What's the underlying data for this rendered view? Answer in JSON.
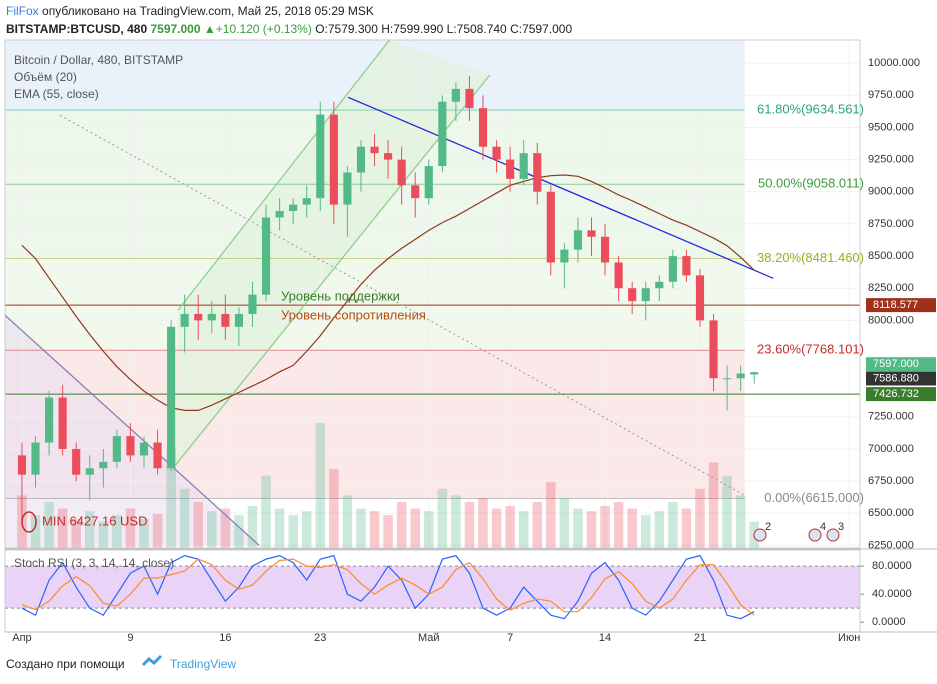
{
  "header": {
    "author": "FilFox",
    "published": "опубликовано на TradingView.com, Май 25, 2018 05:29 MSK",
    "symbol": "BITSTAMP:BTCUSD, 480",
    "last": "7597.000",
    "arrow": "▲",
    "change": "+10.120 (+0.13%)",
    "open": "O:7579.300",
    "high": "H:7599.990",
    "low": "L:7508.740",
    "close": "C:7597.000"
  },
  "chart_data": [
    {
      "type": "candlestick",
      "title": "Bitcoin / Dollar, 480, BITSTAMP",
      "up_color": "#53b987",
      "down_color": "#eb4d5c",
      "ohlc": [
        [
          6950,
          7050,
          6427.16,
          6800
        ],
        [
          6800,
          7100,
          6700,
          7050
        ],
        [
          7050,
          7450,
          6950,
          7400
        ],
        [
          7400,
          7500,
          6950,
          7000
        ],
        [
          7000,
          7050,
          6750,
          6800
        ],
        [
          6800,
          6950,
          6600,
          6850
        ],
        [
          6850,
          7000,
          6700,
          6900
        ],
        [
          6900,
          7150,
          6850,
          7100
        ],
        [
          7100,
          7200,
          6900,
          6950
        ],
        [
          6950,
          7100,
          6850,
          7050
        ],
        [
          7050,
          7150,
          6800,
          6850
        ],
        [
          6850,
          8000,
          6830,
          7950
        ],
        [
          7950,
          8200,
          7750,
          8050
        ],
        [
          8050,
          8200,
          7850,
          8000
        ],
        [
          8000,
          8150,
          7900,
          8050
        ],
        [
          8050,
          8200,
          7850,
          7950
        ],
        [
          7950,
          8100,
          7800,
          8050
        ],
        [
          8050,
          8300,
          7950,
          8200
        ],
        [
          8200,
          8900,
          8150,
          8800
        ],
        [
          8800,
          8950,
          8700,
          8850
        ],
        [
          8850,
          8950,
          8750,
          8900
        ],
        [
          8900,
          9050,
          8800,
          8950
        ],
        [
          8950,
          9700,
          8850,
          9600
        ],
        [
          9600,
          9700,
          8750,
          8900
        ],
        [
          8900,
          9200,
          8650,
          9150
        ],
        [
          9150,
          9400,
          9000,
          9350
        ],
        [
          9350,
          9450,
          9200,
          9300
        ],
        [
          9300,
          9400,
          9100,
          9250
        ],
        [
          9250,
          9350,
          8900,
          9050
        ],
        [
          9050,
          9150,
          8800,
          8950
        ],
        [
          8950,
          9250,
          8900,
          9200
        ],
        [
          9200,
          9750,
          9150,
          9700
        ],
        [
          9700,
          9850,
          9550,
          9800
        ],
        [
          9800,
          9900,
          9550,
          9650
        ],
        [
          9650,
          9750,
          9250,
          9350
        ],
        [
          9350,
          9400,
          9150,
          9250
        ],
        [
          9250,
          9350,
          9000,
          9100
        ],
        [
          9100,
          9400,
          9050,
          9300
        ],
        [
          9300,
          9380,
          8900,
          9000
        ],
        [
          9000,
          9050,
          8350,
          8450
        ],
        [
          8450,
          8600,
          8250,
          8550
        ],
        [
          8550,
          8800,
          8450,
          8700
        ],
        [
          8700,
          8800,
          8500,
          8650
        ],
        [
          8650,
          8750,
          8350,
          8450
        ],
        [
          8450,
          8500,
          8150,
          8250
        ],
        [
          8250,
          8300,
          8050,
          8150
        ],
        [
          8150,
          8300,
          8000,
          8250
        ],
        [
          8250,
          8350,
          8150,
          8300
        ],
        [
          8300,
          8550,
          8250,
          8500
        ],
        [
          8500,
          8550,
          8300,
          8350
        ],
        [
          8350,
          8400,
          7950,
          8000
        ],
        [
          8000,
          8050,
          7450,
          7550
        ],
        [
          7550,
          7650,
          7300,
          7550
        ],
        [
          7550,
          7650,
          7450,
          7587
        ],
        [
          7579.3,
          7599.99,
          7508.74,
          7597
        ]
      ],
      "volume": {
        "name": "Объём (20)",
        "values": [
          40,
          25,
          35,
          30,
          22,
          28,
          20,
          25,
          30,
          22,
          26,
          75,
          45,
          35,
          28,
          30,
          25,
          32,
          55,
          30,
          25,
          28,
          95,
          60,
          40,
          30,
          28,
          25,
          35,
          30,
          28,
          45,
          40,
          35,
          38,
          30,
          32,
          28,
          35,
          50,
          38,
          30,
          28,
          32,
          35,
          30,
          25,
          28,
          35,
          30,
          45,
          65,
          55,
          40,
          20
        ]
      },
      "ema": {
        "name": "EMA (55, close)",
        "color": "#8b3a1a",
        "values": [
          8584,
          8480,
          8330,
          8180,
          8030,
          7890,
          7760,
          7640,
          7540,
          7450,
          7380,
          7320,
          7300,
          7300,
          7340,
          7390,
          7440,
          7490,
          7540,
          7600,
          7650,
          7760,
          7880,
          8020,
          8150,
          8280,
          8390,
          8480,
          8560,
          8630,
          8700,
          8760,
          8810,
          8870,
          8930,
          8990,
          9050,
          9080,
          9110,
          9125,
          9130,
          9120,
          9080,
          9030,
          8975,
          8930,
          8880,
          8830,
          8780,
          8740,
          8690,
          8640,
          8580,
          8490,
          8390
        ]
      },
      "ylim": [
        6230,
        10180
      ],
      "xlim": [
        -1.25,
        61.8
      ],
      "yticks": [
        {
          "value": 6250,
          "label": "6250.000"
        },
        {
          "value": 6500,
          "label": "6500.000"
        },
        {
          "value": 6750,
          "label": "6750.000"
        },
        {
          "value": 7000,
          "label": "7000.000"
        },
        {
          "value": 7250,
          "label": "7250.000"
        },
        {
          "value": 8000,
          "label": "8000.000"
        },
        {
          "value": 8250,
          "label": "8250.000"
        },
        {
          "value": 8500,
          "label": "8500.000"
        },
        {
          "value": 8750,
          "label": "8750.000"
        },
        {
          "value": 9000,
          "label": "9000.000"
        },
        {
          "value": 9250,
          "label": "9250.000"
        },
        {
          "value": 9500,
          "label": "9500.000"
        },
        {
          "value": 9750,
          "label": "9750.000"
        },
        {
          "value": 10000,
          "label": "10000.000"
        }
      ],
      "xticks": [
        {
          "value": 0,
          "label": "Апр"
        },
        {
          "value": 8,
          "label": "9"
        },
        {
          "value": 15,
          "label": "16"
        },
        {
          "value": 22,
          "label": "23"
        },
        {
          "value": 30,
          "label": "Май"
        },
        {
          "value": 36,
          "label": "7"
        },
        {
          "value": 43,
          "label": "14"
        },
        {
          "value": 50,
          "label": "21"
        },
        {
          "value": 61,
          "label": "Июн"
        }
      ],
      "fib_levels": [
        {
          "value": 9634.561,
          "label": "61.80%(9634.561)",
          "color": "#2aa57d"
        },
        {
          "value": 9058.011,
          "label": "50.00%(9058.011)",
          "color": "#3c9a3c"
        },
        {
          "value": 8481.46,
          "label": "38.20%(8481.460)",
          "color": "#9fae1e"
        },
        {
          "value": 7768.101,
          "label": "23.60%(7768.101)",
          "color": "#c62a2a"
        },
        {
          "value": 6615,
          "label": "0.00%(6615.000)",
          "color": "#888888"
        }
      ],
      "hlines": [
        {
          "value": 8118.577,
          "label": "8118.577",
          "color": "#a0301a"
        },
        {
          "value": 7426.732,
          "label": "7426.732",
          "color": "#3a7d2a"
        }
      ],
      "price_labels": [
        {
          "value": 7597,
          "label": "7597.000",
          "color": "#53b987"
        },
        {
          "value": 7586.88,
          "label": "7586.880",
          "color": "#333333"
        }
      ],
      "annotations": [
        "Уровень поддержки",
        "Уровень сопротивления"
      ],
      "min_label": "MIN 6427.16 USD",
      "trend_lines": [
        {
          "points": [
            [
              24.04,
              9735
            ],
            [
              55.4,
              8327
            ]
          ],
          "color": "#2a2ad8",
          "dash": false
        },
        {
          "points": [
            [
              2.8,
              9595
            ],
            [
              53.3,
              6639
            ]
          ],
          "color": "#999999",
          "dash": true
        },
        {
          "points": [
            [
              -1.25,
              8040
            ],
            [
              17.5,
              6250
            ]
          ],
          "color": "#8a7fb5",
          "dash": false
        },
        {
          "points": [
            [
              11.5,
              8078
            ],
            [
              27.1,
              10180
            ]
          ],
          "color": "#8fd08f",
          "dash": false
        },
        {
          "points": [
            [
              11.3,
              6872
            ],
            [
              34.5,
              9907
            ]
          ],
          "color": "#8fd08f",
          "dash": false
        }
      ],
      "event_badges": [
        "2",
        "4",
        "3"
      ]
    },
    {
      "type": "line",
      "title": "Stoch RSI (3, 3, 14, 14, close)",
      "ylim": [
        -14,
        103
      ],
      "band": [
        20,
        80
      ],
      "band_color": "#e4c9f5",
      "yticks": [
        {
          "value": 0,
          "label": "0.0000"
        },
        {
          "value": 40,
          "label": "40.0000"
        },
        {
          "value": 80,
          "label": "80.0000"
        }
      ],
      "series": [
        {
          "color": "#2962ff",
          "values": [
            20,
            10,
            60,
            85,
            50,
            20,
            10,
            40,
            70,
            80,
            40,
            85,
            95,
            90,
            60,
            30,
            50,
            80,
            90,
            95,
            85,
            60,
            90,
            95,
            40,
            30,
            50,
            80,
            60,
            20,
            40,
            90,
            95,
            70,
            20,
            10,
            20,
            50,
            30,
            10,
            5,
            30,
            70,
            85,
            60,
            20,
            10,
            30,
            60,
            90,
            95,
            60,
            10,
            5,
            15
          ]
        },
        {
          "color": "#ff8a2a",
          "values": [
            25,
            18,
            30,
            52,
            65,
            52,
            27,
            23,
            40,
            63,
            63,
            68,
            73,
            90,
            82,
            60,
            47,
            53,
            73,
            88,
            90,
            80,
            78,
            82,
            75,
            55,
            40,
            53,
            63,
            53,
            40,
            50,
            75,
            85,
            62,
            33,
            17,
            27,
            33,
            30,
            15,
            15,
            35,
            62,
            72,
            55,
            30,
            20,
            33,
            60,
            82,
            82,
            55,
            25,
            10
          ]
        }
      ]
    }
  ],
  "footer": {
    "made_with": "Создано при помощи",
    "brand": "TradingView"
  }
}
